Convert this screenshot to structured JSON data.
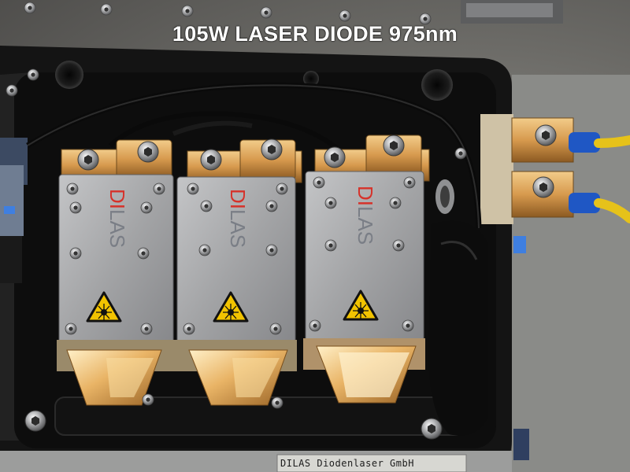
{
  "caption": "105W LASER DIODE 975nm",
  "nameplate": "DILAS Diodenlaser GmbH",
  "modules": [
    {
      "logo_top": "DI",
      "logo_bottom": "LAS"
    },
    {
      "logo_top": "DI",
      "logo_bottom": "LAS"
    },
    {
      "logo_top": "DI",
      "logo_bottom": "LAS"
    }
  ],
  "icons": [
    "laser-warning-icon"
  ],
  "colors": {
    "housing": "#141414",
    "module_cover": "#a3a4a6",
    "copper": "#d9a35a",
    "logo_red": "#d6322a",
    "logo_gray": "#7a7e86",
    "wire_insulation": "#e6c21a",
    "wire_sleeve": "#1f57c4",
    "warning_yellow": "#f2c300"
  }
}
